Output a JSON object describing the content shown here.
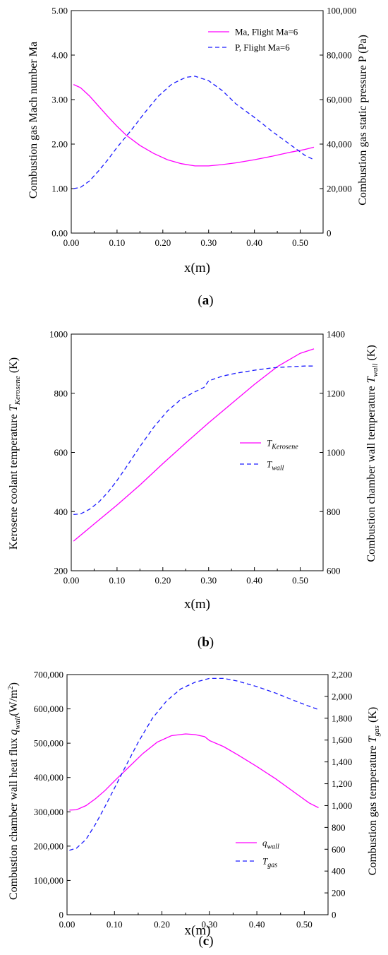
{
  "colors": {
    "primary": "#ff00ff",
    "secondary": "#1a1aff",
    "axis": "#000000"
  },
  "chart_data": [
    {
      "id": "a",
      "type": "line",
      "caption_open": "(",
      "caption_letter": "a",
      "caption_close": ")",
      "xlabel": "x(m)",
      "ylabel_left": {
        "text": "Combustion gas Mach number Ma"
      },
      "ylabel_right": {
        "text": "Combustion gas static pressure P (Pa)"
      },
      "xlim": [
        0,
        0.55
      ],
      "ylim_left": [
        0,
        5
      ],
      "ylim_right": [
        0,
        100000
      ],
      "x_ticks": [
        "0.00",
        "0.10",
        "0.20",
        "0.30",
        "0.40",
        "0.50"
      ],
      "y_ticks_left": [
        "0.00",
        "1.00",
        "2.00",
        "3.00",
        "4.00",
        "5.00"
      ],
      "y_ticks_right": [
        "0",
        "20,000",
        "40,000",
        "60,000",
        "80,000",
        "100,000"
      ],
      "legend_position": "top-right",
      "series": [
        {
          "name": "Ma, Flight Ma=6",
          "axis": "left",
          "style": "solid",
          "color": "#ff00ff",
          "x": [
            0.005,
            0.02,
            0.04,
            0.06,
            0.08,
            0.1,
            0.12,
            0.15,
            0.18,
            0.21,
            0.24,
            0.27,
            0.3,
            0.33,
            0.36,
            0.4,
            0.44,
            0.48,
            0.51,
            0.53
          ],
          "y": [
            3.34,
            3.27,
            3.08,
            2.85,
            2.62,
            2.4,
            2.2,
            1.97,
            1.79,
            1.65,
            1.56,
            1.51,
            1.51,
            1.54,
            1.58,
            1.65,
            1.73,
            1.82,
            1.88,
            1.93
          ]
        },
        {
          "name": "P, Flight Ma=6",
          "axis": "right",
          "style": "dashed",
          "color": "#1a1aff",
          "x": [
            0.005,
            0.02,
            0.04,
            0.06,
            0.08,
            0.1,
            0.13,
            0.16,
            0.19,
            0.22,
            0.25,
            0.27,
            0.3,
            0.33,
            0.36,
            0.4,
            0.44,
            0.48,
            0.51,
            0.53
          ],
          "y": [
            20000,
            20500,
            23500,
            28000,
            33000,
            38500,
            46000,
            54000,
            61500,
            67000,
            70000,
            70500,
            68500,
            64000,
            58000,
            52000,
            45500,
            39500,
            35000,
            33000
          ]
        }
      ]
    },
    {
      "id": "b",
      "type": "line",
      "caption_open": "(",
      "caption_letter": "b",
      "caption_close": ")",
      "xlabel": "x(m)",
      "ylabel_left": {
        "text": "Kerosene coolant temperature ",
        "sym": "T",
        "sub": "Kerosene",
        "unit": " (K)"
      },
      "ylabel_right": {
        "text": "Combustion chamber wall temperature ",
        "sym": "T",
        "sub": "wall",
        "unit": " (K)"
      },
      "xlim": [
        0,
        0.55
      ],
      "ylim_left": [
        200,
        1000
      ],
      "ylim_right": [
        600,
        1400
      ],
      "x_ticks": [
        "0.00",
        "0.10",
        "0.20",
        "0.30",
        "0.40",
        "0.50"
      ],
      "y_ticks_left": [
        "200",
        "400",
        "600",
        "800",
        "1000"
      ],
      "y_ticks_right": [
        "600",
        "800",
        "1000",
        "1200",
        "1400"
      ],
      "legend_position": "center-right",
      "series": [
        {
          "name": "T",
          "name_sub": "Kerosene",
          "axis": "left",
          "style": "solid",
          "color": "#ff00ff",
          "x": [
            0.005,
            0.05,
            0.1,
            0.15,
            0.2,
            0.25,
            0.3,
            0.35,
            0.4,
            0.45,
            0.5,
            0.53
          ],
          "y": [
            300,
            358,
            422,
            490,
            562,
            632,
            700,
            765,
            830,
            890,
            935,
            950
          ]
        },
        {
          "name": "T",
          "name_sub": "wall",
          "axis": "right",
          "style": "dashed",
          "color": "#1a1aff",
          "x": [
            0.005,
            0.02,
            0.04,
            0.06,
            0.08,
            0.1,
            0.12,
            0.15,
            0.18,
            0.21,
            0.24,
            0.27,
            0.29,
            0.3,
            0.33,
            0.36,
            0.4,
            0.44,
            0.48,
            0.51,
            0.53
          ],
          "y": [
            790,
            792,
            808,
            832,
            865,
            905,
            950,
            1020,
            1085,
            1140,
            1180,
            1205,
            1220,
            1242,
            1258,
            1268,
            1278,
            1286,
            1290,
            1292,
            1292
          ]
        }
      ]
    },
    {
      "id": "c",
      "type": "line",
      "caption_open": "(",
      "caption_letter": "c",
      "caption_close": ")",
      "xlabel": "x(m)",
      "ylabel_left": {
        "text": "Combustion chamber wall heat flux ",
        "sym": "q",
        "sub": "wall",
        "unit": "(W/m",
        "sup": "2",
        "unit_close": ")"
      },
      "ylabel_right": {
        "text": "Combustion gas temperature ",
        "sym": "T",
        "sub": "gas",
        "unit": " (K)"
      },
      "xlim": [
        0,
        0.55
      ],
      "ylim_left": [
        0,
        700000
      ],
      "ylim_right": [
        0,
        2200
      ],
      "x_ticks": [
        "0.00",
        "0.10",
        "0.20",
        "0.30",
        "0.40",
        "0.50"
      ],
      "y_ticks_left": [
        "0",
        "100,000",
        "200,000",
        "300,000",
        "400,000",
        "500,000",
        "600,000",
        "700,000"
      ],
      "y_ticks_right": [
        "0",
        "200",
        "400",
        "600",
        "800",
        "1,000",
        "1,200",
        "1,400",
        "1,600",
        "1,800",
        "2,000",
        "2,200"
      ],
      "legend_position": "bottom-right",
      "series": [
        {
          "name": "q",
          "name_sub": "wall",
          "axis": "left",
          "style": "solid",
          "color": "#ff00ff",
          "x": [
            0.005,
            0.02,
            0.04,
            0.06,
            0.08,
            0.1,
            0.13,
            0.16,
            0.19,
            0.22,
            0.25,
            0.27,
            0.29,
            0.3,
            0.33,
            0.36,
            0.4,
            0.44,
            0.48,
            0.51,
            0.53
          ],
          "y": [
            305000,
            306000,
            318000,
            338000,
            362000,
            390000,
            430000,
            470000,
            503000,
            522000,
            527000,
            525000,
            519000,
            508000,
            490000,
            466000,
            432000,
            396000,
            356000,
            326000,
            312000
          ]
        },
        {
          "name": "T",
          "name_sub": "gas",
          "axis": "right",
          "style": "dashed",
          "color": "#1a1aff",
          "x": [
            0.005,
            0.02,
            0.04,
            0.06,
            0.08,
            0.1,
            0.12,
            0.15,
            0.18,
            0.21,
            0.24,
            0.27,
            0.3,
            0.33,
            0.36,
            0.4,
            0.44,
            0.48,
            0.51,
            0.53
          ],
          "y": [
            590,
            610,
            690,
            830,
            990,
            1160,
            1330,
            1580,
            1800,
            1960,
            2070,
            2130,
            2165,
            2165,
            2140,
            2090,
            2030,
            1960,
            1910,
            1880
          ]
        }
      ]
    }
  ]
}
